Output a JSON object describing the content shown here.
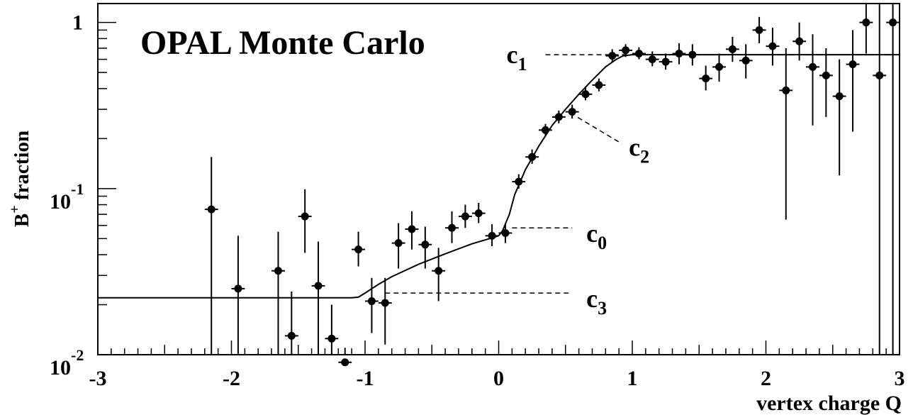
{
  "chart_data": {
    "type": "scatter",
    "title": "OPAL Monte Carlo",
    "xlabel": "vertex charge Q",
    "ylabel": {
      "base": "B",
      "sup": "+",
      "rest": " fraction"
    },
    "xlim": [
      -3,
      3
    ],
    "ylim": [
      0.01,
      1.3
    ],
    "yscale": "log",
    "x_ticks": [
      -3,
      -2,
      -1,
      0,
      1,
      2,
      3
    ],
    "x_tick_labels": [
      "-3",
      "-2",
      "-1",
      "0",
      "1",
      "2",
      "3"
    ],
    "y_ticks": [
      {
        "value": 0.01,
        "base": "10",
        "exp": "-2"
      },
      {
        "value": 0.1,
        "base": "10",
        "exp": "-1"
      },
      {
        "value": 1,
        "base": "1",
        "exp": ""
      }
    ],
    "points": [
      {
        "x": -2.15,
        "y": 0.075,
        "lo": 0.003,
        "hi": 0.155
      },
      {
        "x": -1.95,
        "y": 0.025,
        "lo": 0.004,
        "hi": 0.052
      },
      {
        "x": -1.65,
        "y": 0.032,
        "lo": 0.004,
        "hi": 0.055
      },
      {
        "x": -1.55,
        "y": 0.013,
        "lo": 0.005,
        "hi": 0.024
      },
      {
        "x": -1.45,
        "y": 0.068,
        "lo": 0.041,
        "hi": 0.099
      },
      {
        "x": -1.35,
        "y": 0.026,
        "lo": 0.006,
        "hi": 0.048
      },
      {
        "x": -1.25,
        "y": 0.0125,
        "lo": 0.005,
        "hi": 0.02
      },
      {
        "x": -1.15,
        "y": 0.009,
        "lo": 0.005,
        "hi": 0.011
      },
      {
        "x": -1.05,
        "y": 0.043,
        "lo": 0.034,
        "hi": 0.055
      },
      {
        "x": -0.95,
        "y": 0.021,
        "lo": 0.0135,
        "hi": 0.029
      },
      {
        "x": -0.85,
        "y": 0.0205,
        "lo": 0.0115,
        "hi": 0.029
      },
      {
        "x": -0.75,
        "y": 0.047,
        "lo": 0.033,
        "hi": 0.062
      },
      {
        "x": -0.65,
        "y": 0.057,
        "lo": 0.043,
        "hi": 0.073
      },
      {
        "x": -0.55,
        "y": 0.046,
        "lo": 0.033,
        "hi": 0.059
      },
      {
        "x": -0.45,
        "y": 0.032,
        "lo": 0.021,
        "hi": 0.044
      },
      {
        "x": -0.35,
        "y": 0.058,
        "lo": 0.047,
        "hi": 0.073
      },
      {
        "x": -0.25,
        "y": 0.068,
        "lo": 0.058,
        "hi": 0.08
      },
      {
        "x": -0.15,
        "y": 0.071,
        "lo": 0.062,
        "hi": 0.082
      },
      {
        "x": -0.05,
        "y": 0.052,
        "lo": 0.045,
        "hi": 0.061
      },
      {
        "x": 0.05,
        "y": 0.054,
        "lo": 0.047,
        "hi": 0.061
      },
      {
        "x": 0.15,
        "y": 0.11,
        "lo": 0.1,
        "hi": 0.122
      },
      {
        "x": 0.25,
        "y": 0.155,
        "lo": 0.141,
        "hi": 0.172
      },
      {
        "x": 0.35,
        "y": 0.225,
        "lo": 0.206,
        "hi": 0.245
      },
      {
        "x": 0.45,
        "y": 0.27,
        "lo": 0.247,
        "hi": 0.295
      },
      {
        "x": 0.55,
        "y": 0.29,
        "lo": 0.264,
        "hi": 0.32
      },
      {
        "x": 0.65,
        "y": 0.37,
        "lo": 0.34,
        "hi": 0.405
      },
      {
        "x": 0.75,
        "y": 0.42,
        "lo": 0.385,
        "hi": 0.46
      },
      {
        "x": 0.85,
        "y": 0.63,
        "lo": 0.575,
        "hi": 0.69
      },
      {
        "x": 0.95,
        "y": 0.68,
        "lo": 0.62,
        "hi": 0.74
      },
      {
        "x": 1.05,
        "y": 0.65,
        "lo": 0.6,
        "hi": 0.71
      },
      {
        "x": 1.15,
        "y": 0.6,
        "lo": 0.545,
        "hi": 0.67
      },
      {
        "x": 1.25,
        "y": 0.58,
        "lo": 0.52,
        "hi": 0.65
      },
      {
        "x": 1.35,
        "y": 0.65,
        "lo": 0.56,
        "hi": 0.75
      },
      {
        "x": 1.45,
        "y": 0.64,
        "lo": 0.55,
        "hi": 0.74
      },
      {
        "x": 1.55,
        "y": 0.46,
        "lo": 0.39,
        "hi": 0.55
      },
      {
        "x": 1.65,
        "y": 0.54,
        "lo": 0.44,
        "hi": 0.65
      },
      {
        "x": 1.75,
        "y": 0.69,
        "lo": 0.58,
        "hi": 0.82
      },
      {
        "x": 1.85,
        "y": 0.59,
        "lo": 0.46,
        "hi": 0.74
      },
      {
        "x": 1.95,
        "y": 0.9,
        "lo": 0.75,
        "hi": 1.08
      },
      {
        "x": 2.05,
        "y": 0.72,
        "lo": 0.55,
        "hi": 0.93
      },
      {
        "x": 2.15,
        "y": 0.39,
        "lo": 0.065,
        "hi": 0.7
      },
      {
        "x": 2.25,
        "y": 0.77,
        "lo": 0.59,
        "hi": 1.0
      },
      {
        "x": 2.35,
        "y": 0.54,
        "lo": 0.24,
        "hi": 0.85
      },
      {
        "x": 2.45,
        "y": 0.48,
        "lo": 0.27,
        "hi": 0.7
      },
      {
        "x": 2.55,
        "y": 0.36,
        "lo": 0.12,
        "hi": 0.6
      },
      {
        "x": 2.65,
        "y": 0.56,
        "lo": 0.22,
        "hi": 0.9
      },
      {
        "x": 2.75,
        "y": 1.0,
        "lo": 0.65,
        "hi": 1.3
      },
      {
        "x": 2.85,
        "y": 0.48,
        "lo": 0.01,
        "hi": 1.3
      },
      {
        "x": 2.95,
        "y": 1.0,
        "lo": 0.01,
        "hi": 1.3
      }
    ],
    "fit_curve": {
      "x": [
        -3.0,
        -1.1,
        -1.05,
        -1.0,
        -0.9,
        -0.8,
        -0.6,
        -0.4,
        -0.2,
        -0.05,
        0.0,
        0.03,
        0.08,
        0.12,
        0.2,
        0.3,
        0.4,
        0.5,
        0.6,
        0.7,
        0.8,
        0.88,
        0.93,
        1.0,
        3.0
      ],
      "y": [
        0.022,
        0.022,
        0.0222,
        0.0235,
        0.0265,
        0.0295,
        0.035,
        0.0405,
        0.0465,
        0.0505,
        0.052,
        0.056,
        0.07,
        0.092,
        0.13,
        0.18,
        0.24,
        0.3,
        0.37,
        0.45,
        0.54,
        0.6,
        0.63,
        0.64,
        0.64
      ]
    },
    "annotations": [
      {
        "label": "c",
        "sub": "1",
        "y": 0.64,
        "x_from": 0.35,
        "x_to": 1.05
      },
      {
        "label": "c",
        "sub": "2",
        "x": 0.55,
        "y": 0.29
      },
      {
        "label": "c",
        "sub": "0",
        "y": 0.058,
        "x_from": 0.1,
        "x_to": 0.55
      },
      {
        "label": "c",
        "sub": "3",
        "y": 0.0235,
        "x_from": -0.85,
        "x_to": 0.55
      }
    ]
  }
}
